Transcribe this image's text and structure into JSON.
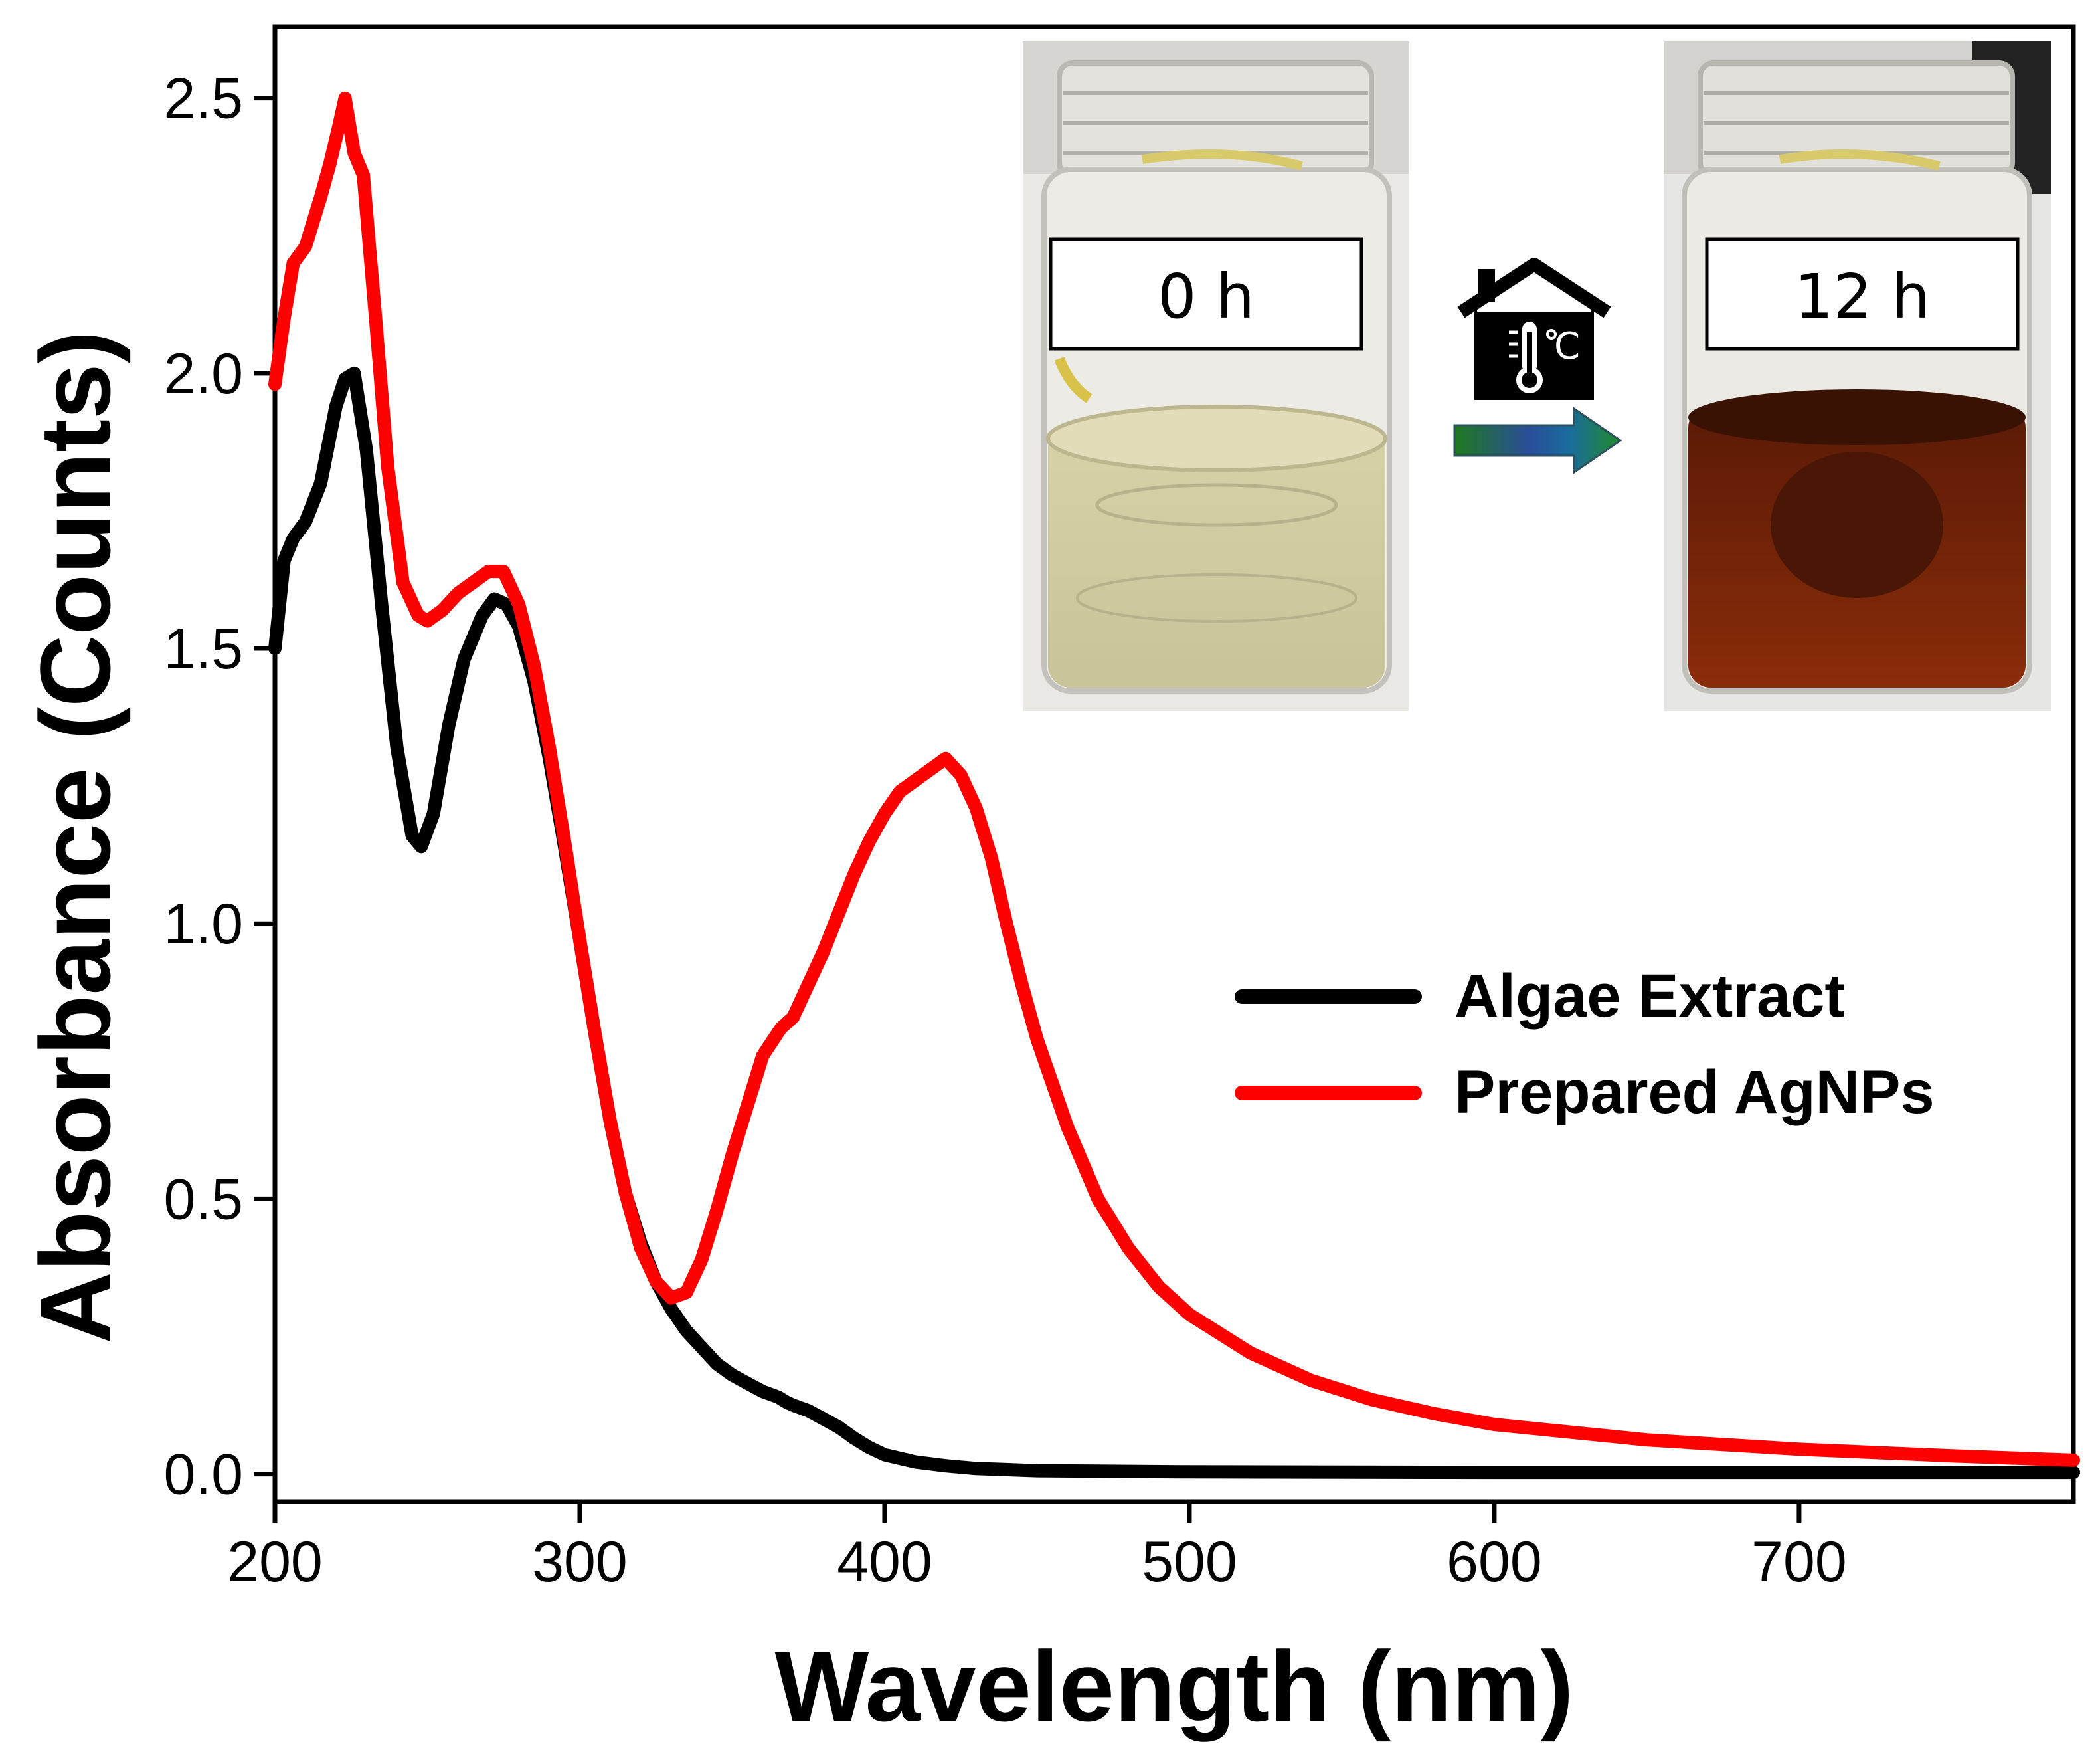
{
  "chart_data": {
    "type": "line",
    "title": "",
    "xlabel": "Wavelength (nm)",
    "ylabel": "Absorbance (Counts)",
    "xlim": [
      200,
      790
    ],
    "ylim": [
      -0.05,
      2.63
    ],
    "xticks": [
      200,
      300,
      400,
      500,
      600,
      700
    ],
    "yticks": [
      0.0,
      0.5,
      1.0,
      1.5,
      2.0,
      2.5
    ],
    "xtick_labels": [
      "200",
      "300",
      "400",
      "500",
      "600",
      "700"
    ],
    "ytick_labels": [
      "0.0",
      "0.5",
      "1.0",
      "1.5",
      "2.0",
      "2.5"
    ],
    "legend_position": "middle-right",
    "series": [
      {
        "name": "Algae Extract",
        "color": "#000000",
        "x": [
          200,
          203,
          206,
          210,
          215,
          220,
          223,
          226,
          230,
          235,
          240,
          245,
          248,
          252,
          257,
          262,
          268,
          272,
          276,
          280,
          285,
          290,
          295,
          300,
          305,
          310,
          315,
          320,
          325,
          330,
          335,
          340,
          345,
          350,
          355,
          360,
          365,
          368,
          370,
          375,
          380,
          385,
          390,
          395,
          400,
          410,
          420,
          430,
          450,
          500,
          600,
          700,
          790
        ],
        "y": [
          1.5,
          1.66,
          1.7,
          1.73,
          1.8,
          1.94,
          1.99,
          2.0,
          1.86,
          1.58,
          1.32,
          1.16,
          1.14,
          1.2,
          1.36,
          1.48,
          1.56,
          1.59,
          1.58,
          1.54,
          1.44,
          1.3,
          1.14,
          0.97,
          0.8,
          0.64,
          0.51,
          0.42,
          0.35,
          0.3,
          0.26,
          0.23,
          0.2,
          0.18,
          0.165,
          0.15,
          0.14,
          0.13,
          0.125,
          0.115,
          0.1,
          0.085,
          0.065,
          0.048,
          0.035,
          0.022,
          0.015,
          0.01,
          0.006,
          0.004,
          0.003,
          0.003,
          0.003
        ]
      },
      {
        "name": "Prepared AgNPs",
        "color": "#ff0000",
        "x": [
          200,
          203,
          206,
          210,
          215,
          218,
          221,
          223,
          226,
          229,
          233,
          237,
          242,
          247,
          250,
          255,
          260,
          265,
          270,
          275,
          280,
          285,
          290,
          295,
          300,
          305,
          310,
          315,
          320,
          325,
          330,
          335,
          340,
          345,
          350,
          355,
          360,
          366,
          370,
          375,
          380,
          385,
          390,
          395,
          400,
          405,
          410,
          415,
          420,
          425,
          430,
          435,
          440,
          445,
          450,
          460,
          470,
          480,
          490,
          500,
          520,
          540,
          560,
          580,
          600,
          650,
          700,
          750,
          790
        ],
        "y": [
          1.98,
          2.1,
          2.2,
          2.23,
          2.32,
          2.38,
          2.45,
          2.5,
          2.4,
          2.36,
          2.1,
          1.83,
          1.62,
          1.56,
          1.55,
          1.57,
          1.6,
          1.62,
          1.64,
          1.64,
          1.58,
          1.47,
          1.32,
          1.15,
          0.97,
          0.8,
          0.64,
          0.51,
          0.41,
          0.35,
          0.32,
          0.33,
          0.39,
          0.48,
          0.58,
          0.67,
          0.76,
          0.81,
          0.83,
          0.89,
          0.95,
          1.02,
          1.09,
          1.15,
          1.2,
          1.24,
          1.26,
          1.28,
          1.3,
          1.27,
          1.21,
          1.12,
          1.0,
          0.89,
          0.79,
          0.63,
          0.5,
          0.41,
          0.34,
          0.29,
          0.22,
          0.17,
          0.135,
          0.11,
          0.09,
          0.062,
          0.045,
          0.033,
          0.025
        ]
      }
    ]
  },
  "inset": {
    "photo_left_label": "0 h",
    "photo_right_label": "12 h",
    "process_icon": "house-thermometer-icon",
    "arrow_icon": "right-arrow-icon"
  }
}
